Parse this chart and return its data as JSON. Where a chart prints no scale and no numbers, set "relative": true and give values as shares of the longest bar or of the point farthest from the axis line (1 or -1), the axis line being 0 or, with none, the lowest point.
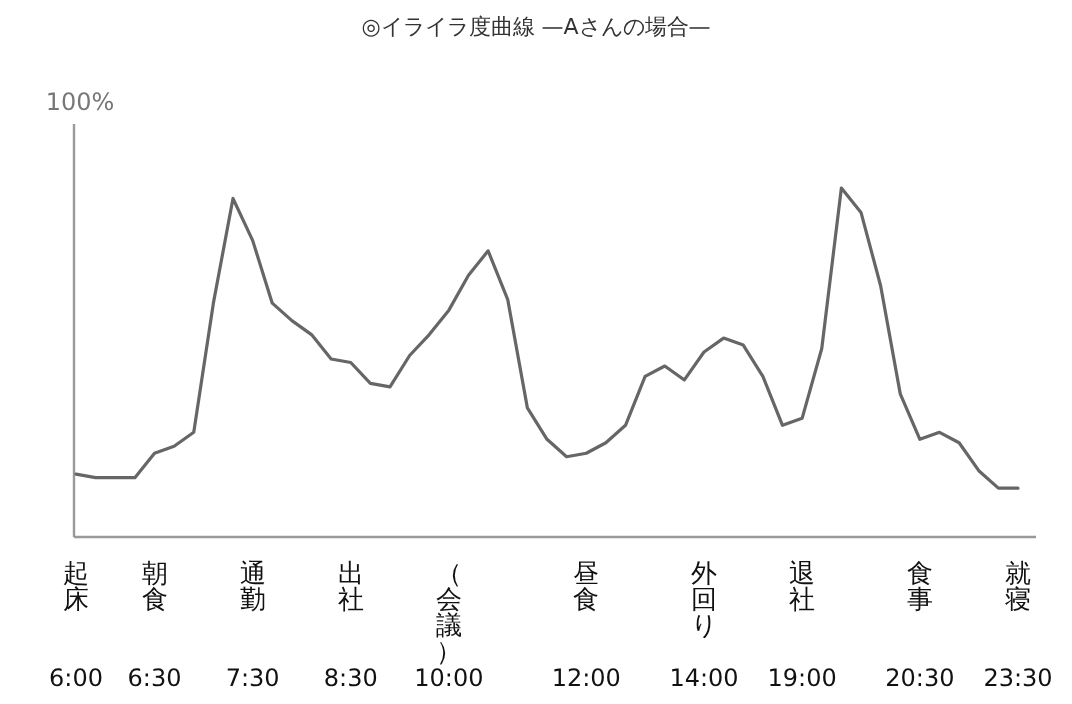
{
  "chart_data": {
    "type": "line",
    "title": "◎イライラ度曲線 —Aさんの場合—",
    "ylabel": "100%",
    "relative": true,
    "color": "#666666",
    "marker": "none",
    "line_style": "solid",
    "categories": [
      "6:00",
      null,
      null,
      null,
      "6:30",
      null,
      null,
      null,
      null,
      "7:30",
      null,
      null,
      null,
      null,
      "8:30",
      null,
      null,
      null,
      null,
      "10:00",
      null,
      null,
      null,
      null,
      null,
      null,
      "12:00",
      null,
      null,
      null,
      null,
      null,
      "14:00",
      null,
      null,
      null,
      null,
      "19:00",
      null,
      null,
      null,
      null,
      null,
      "20:30",
      null,
      null,
      null,
      null,
      "23:30"
    ],
    "values": [
      0.18,
      0.17,
      0.17,
      0.17,
      0.24,
      0.26,
      0.3,
      0.67,
      0.97,
      0.85,
      0.67,
      0.62,
      0.58,
      0.51,
      0.5,
      0.44,
      0.43,
      0.52,
      0.58,
      0.65,
      0.75,
      0.82,
      0.68,
      0.37,
      0.28,
      0.23,
      0.24,
      0.27,
      0.32,
      0.46,
      0.49,
      0.45,
      0.53,
      0.57,
      0.55,
      0.46,
      0.32,
      0.34,
      0.54,
      1,
      0.93,
      0.72,
      0.41,
      0.28,
      0.3,
      0.27,
      0.19,
      0.14,
      0.14
    ],
    "annotations": [
      "起床",
      "朝食",
      "通勤",
      "出社",
      "（会議）",
      "昼食",
      "外回り",
      "退社",
      "食事",
      "就寝"
    ]
  }
}
